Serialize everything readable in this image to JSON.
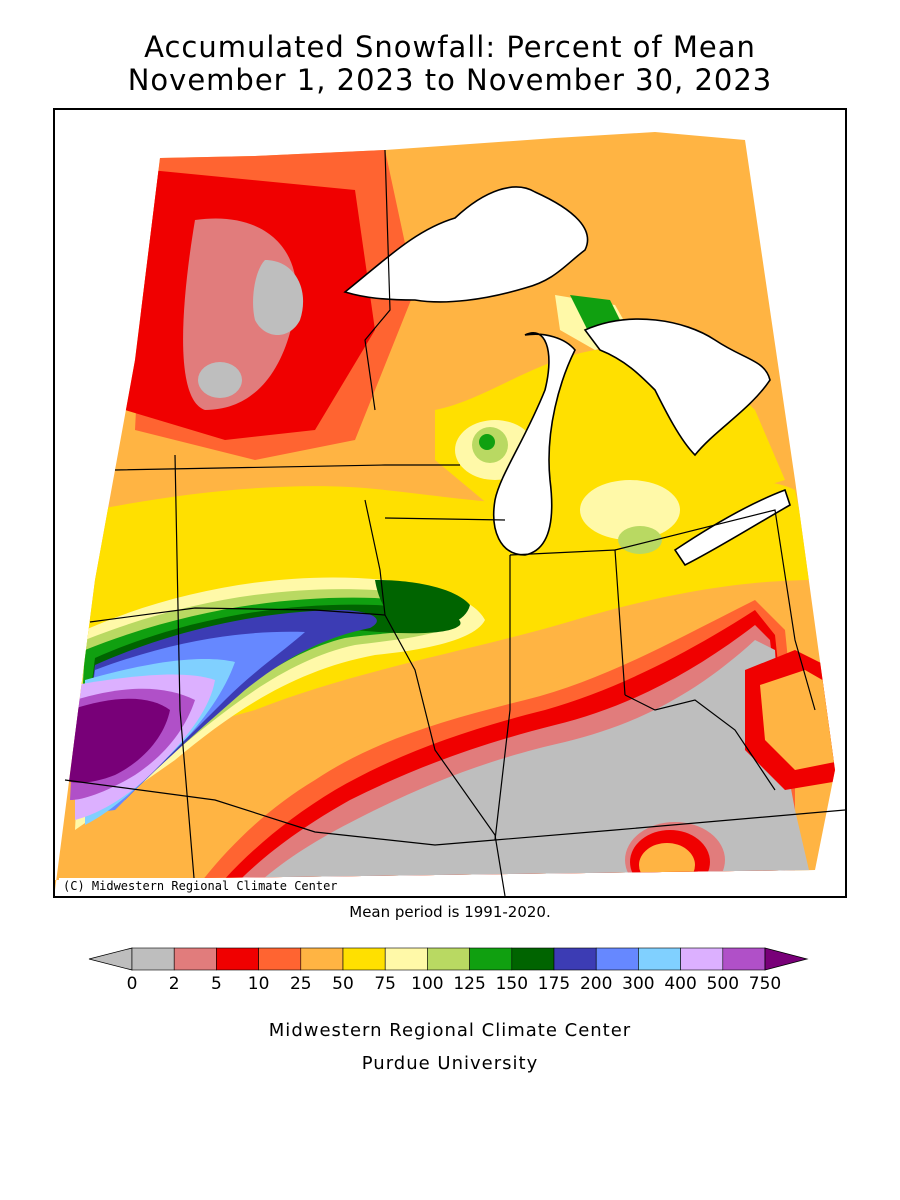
{
  "title": {
    "line1": "Accumulated Snowfall: Percent of Mean",
    "line2": "November 1, 2023 to November 30, 2023"
  },
  "map": {
    "copyright": "(C) Midwestern Regional Climate Center",
    "mean_period": "Mean period is 1991-2020.",
    "colors": {
      "lake": "#ffffff",
      "border": "#000000"
    }
  },
  "legend": {
    "ticks": [
      "0",
      "2",
      "5",
      "10",
      "25",
      "50",
      "75",
      "100",
      "125",
      "150",
      "175",
      "200",
      "300",
      "400",
      "500",
      "750"
    ],
    "colors": [
      "#bebebe",
      "#e17c7c",
      "#f00000",
      "#ff6431",
      "#ffb443",
      "#ffe000",
      "#fff9a8",
      "#b9d962",
      "#10a010",
      "#006400",
      "#3c3cb4",
      "#6688ff",
      "#80d0ff",
      "#dcb0ff",
      "#b050c8",
      "#780078"
    ],
    "under_color": "#bebebe",
    "over_color": "#780078"
  },
  "footer": {
    "line1": "Midwestern Regional Climate Center",
    "line2": "Purdue University"
  }
}
